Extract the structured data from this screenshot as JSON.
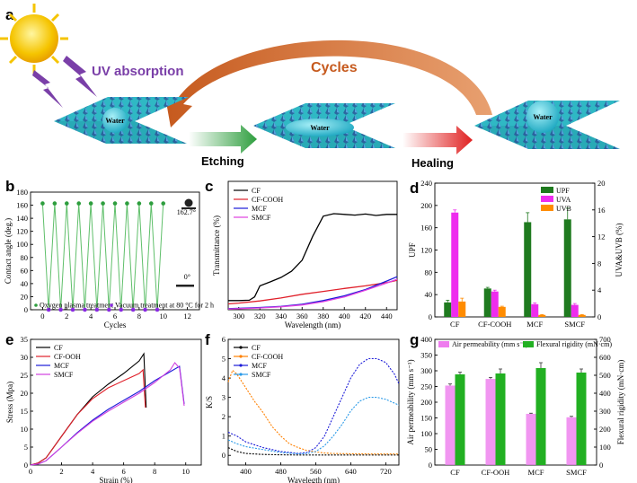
{
  "panel_a": {
    "label": "a",
    "uv_text": "UV absorption",
    "cycles_text": "Cycles",
    "etching_text": "Etching",
    "healing_text": "Healing",
    "water_label": "Water",
    "colors": {
      "uv": "#7a3fa8",
      "cycles": "#c65a1e",
      "sun": "#f5c400",
      "fabric": "#34c0c8",
      "crystal": "#2a5a9a"
    }
  },
  "chart_data": [
    {
      "panel": "b",
      "type": "scatter",
      "xlabel": "Cycles",
      "ylabel": "Contact angle (deg.)",
      "xlim": [
        -1,
        13
      ],
      "ylim": [
        0,
        180
      ],
      "xticks": [
        0,
        2,
        4,
        6,
        8,
        10,
        12
      ],
      "yticks": [
        0,
        20,
        40,
        60,
        80,
        100,
        120,
        140,
        160,
        180
      ],
      "series": [
        {
          "name": "Oxygen plasma treatment",
          "x": [
            0,
            1,
            2,
            3,
            4,
            5,
            6,
            7,
            8,
            9,
            10
          ],
          "values": [
            162.7,
            162.7,
            162.7,
            162.7,
            162.7,
            162.7,
            162.7,
            162.7,
            162.7,
            162.7,
            162.7
          ],
          "color": "#2e9e3e"
        },
        {
          "name": "Vacuum treatment at 80 °C for 2 h",
          "x": [
            0.5,
            1.5,
            2.5,
            3.5,
            4.5,
            5.5,
            6.5,
            7.5,
            8.5,
            9.5
          ],
          "values": [
            0,
            0,
            0,
            0,
            0,
            0,
            0,
            0,
            0,
            0
          ],
          "color": "#8a2be2"
        }
      ],
      "annotations": [
        "162.7°",
        "0°"
      ]
    },
    {
      "panel": "c",
      "type": "line",
      "xlabel": "Wavelength (nm)",
      "ylabel": "Transmittance (%)",
      "xlim": [
        290,
        450
      ],
      "ylim": [
        0,
        35
      ],
      "xticks": [
        300,
        320,
        340,
        360,
        380,
        400,
        420,
        440
      ],
      "series": [
        {
          "name": "CF",
          "color": "#000000",
          "x": [
            290,
            300,
            310,
            315,
            320,
            330,
            340,
            350,
            360,
            370,
            380,
            390,
            400,
            410,
            420,
            430,
            440,
            450
          ],
          "values": [
            2.5,
            2.5,
            2.6,
            3.5,
            6.5,
            7.6,
            8.8,
            10.5,
            13.5,
            20,
            25.5,
            26.2,
            26,
            25.8,
            26.1,
            25.7,
            26,
            26
          ]
        },
        {
          "name": "CF-COOH",
          "color": "#e0202a",
          "x": [
            290,
            300,
            320,
            340,
            360,
            380,
            400,
            420,
            440,
            450
          ],
          "values": [
            1.6,
            1.8,
            2.4,
            3.2,
            4.2,
            5,
            5.8,
            6.5,
            7.4,
            8
          ]
        },
        {
          "name": "MCF",
          "color": "#1c1cd8",
          "x": [
            290,
            300,
            320,
            340,
            360,
            380,
            400,
            420,
            440,
            450
          ],
          "values": [
            0.3,
            0.4,
            0.6,
            0.9,
            1.5,
            2.5,
            3.8,
            5.5,
            7.8,
            9
          ]
        },
        {
          "name": "SMCF",
          "color": "#e040e0",
          "x": [
            290,
            300,
            320,
            340,
            360,
            380,
            400,
            420,
            440,
            450
          ],
          "values": [
            0.2,
            0.3,
            0.5,
            0.8,
            1.3,
            2.2,
            3.5,
            5.3,
            7.3,
            8.3
          ]
        }
      ]
    },
    {
      "panel": "d",
      "type": "bar",
      "categories": [
        "CF",
        "CF-COOH",
        "MCF",
        "SMCF"
      ],
      "ylabel": "UPF",
      "ylabel_right": "UVA&UVB (%)",
      "ylim": [
        0,
        240
      ],
      "ylim_right": [
        0,
        20
      ],
      "yticks": [
        0,
        40,
        80,
        120,
        160,
        200,
        240
      ],
      "yticks_right": [
        0,
        4,
        8,
        12,
        16,
        20
      ],
      "series": [
        {
          "name": "UPF",
          "axis": "left",
          "color": "#1f7a1f",
          "values": [
            26,
            51,
            170,
            175
          ],
          "errors": [
            4,
            2,
            17,
            20
          ]
        },
        {
          "name": "UVA",
          "axis": "right",
          "color": "#ee2cee",
          "values": [
            15.6,
            3.8,
            1.9,
            1.8
          ],
          "errors": [
            0.4,
            0.2,
            0.2,
            0.2
          ]
        },
        {
          "name": "UVB",
          "axis": "right",
          "color": "#ff8c00",
          "values": [
            2.3,
            1.5,
            0.3,
            0.3
          ],
          "errors": [
            0.5,
            0.1,
            0.05,
            0.05
          ]
        }
      ]
    },
    {
      "panel": "e",
      "type": "line",
      "xlabel": "Strain (%)",
      "ylabel": "Stress (Mpa)",
      "xlim": [
        0,
        11
      ],
      "ylim": [
        0,
        35
      ],
      "xticks": [
        0,
        2,
        4,
        6,
        8,
        10
      ],
      "yticks": [
        0,
        5,
        10,
        15,
        20,
        25,
        30,
        35
      ],
      "series": [
        {
          "name": "CF",
          "color": "#000000",
          "x": [
            0,
            0.5,
            1,
            2,
            3,
            4,
            5,
            6,
            7,
            7.3,
            7.45
          ],
          "values": [
            0,
            0.6,
            2,
            8,
            14,
            19,
            22.5,
            25.5,
            29,
            31,
            16
          ]
        },
        {
          "name": "CF-OOH",
          "color": "#e0202a",
          "x": [
            0,
            0.5,
            1,
            2,
            3,
            4,
            5,
            6,
            7,
            7.25,
            7.4
          ],
          "values": [
            0,
            0.6,
            2,
            8,
            14,
            18.5,
            21.5,
            23.5,
            25.5,
            26.5,
            16
          ]
        },
        {
          "name": "MCF",
          "color": "#1c1cd8",
          "x": [
            0,
            0.5,
            1,
            2,
            3,
            4,
            5,
            6,
            7,
            8,
            9,
            9.6,
            9.9
          ],
          "values": [
            0,
            0.3,
            1.2,
            5,
            9,
            12.5,
            15.5,
            18,
            20.5,
            23.5,
            26,
            27.5,
            17
          ]
        },
        {
          "name": "SMCF",
          "color": "#d040e0",
          "x": [
            0,
            0.5,
            1,
            2,
            3,
            4,
            5,
            6,
            7,
            8,
            9,
            9.3,
            9.6,
            9.9
          ],
          "values": [
            0,
            0.3,
            1.2,
            5,
            8.8,
            12.2,
            15,
            17.5,
            20,
            23,
            26.5,
            28.5,
            27,
            16.5
          ]
        }
      ]
    },
    {
      "panel": "f",
      "type": "line",
      "xlabel": "Wavelegth (nm)",
      "ylabel": "K/S",
      "xlim": [
        360,
        750
      ],
      "ylim": [
        -0.5,
        6
      ],
      "xticks": [
        400,
        480,
        560,
        640,
        720
      ],
      "yticks": [
        0,
        1,
        2,
        3,
        4,
        5,
        6
      ],
      "series": [
        {
          "name": "CF",
          "color": "#000000",
          "x": [
            360,
            380,
            400,
            440,
            480,
            520,
            560,
            600,
            640,
            680,
            720,
            750
          ],
          "values": [
            0.4,
            0.2,
            0.1,
            0.05,
            0.03,
            0.02,
            0.02,
            0.02,
            0.02,
            0.02,
            0.02,
            0.02
          ]
        },
        {
          "name": "CF-COOH",
          "color": "#ff8000",
          "x": [
            360,
            370,
            380,
            400,
            420,
            440,
            460,
            480,
            500,
            520,
            540,
            560,
            580,
            600,
            650,
            700,
            750
          ],
          "values": [
            3.8,
            4.4,
            4.2,
            3.5,
            2.8,
            2.2,
            1.5,
            1,
            0.6,
            0.4,
            0.25,
            0.18,
            0.12,
            0.1,
            0.08,
            0.07,
            0.07
          ]
        },
        {
          "name": "MCF",
          "color": "#1c1cd8",
          "x": [
            360,
            380,
            400,
            440,
            480,
            520,
            540,
            560,
            580,
            600,
            620,
            640,
            660,
            680,
            700,
            720,
            740,
            750
          ],
          "values": [
            1.2,
            1,
            0.7,
            0.4,
            0.2,
            0.1,
            0.15,
            0.4,
            1,
            2,
            3,
            4,
            4.7,
            5,
            5,
            4.8,
            4.2,
            3.7
          ]
        },
        {
          "name": "SMCF",
          "color": "#2a9ae8",
          "x": [
            360,
            380,
            400,
            440,
            480,
            520,
            540,
            560,
            580,
            600,
            620,
            640,
            660,
            680,
            700,
            720,
            740,
            750
          ],
          "values": [
            0.8,
            0.6,
            0.45,
            0.3,
            0.15,
            0.08,
            0.1,
            0.2,
            0.5,
            1,
            1.6,
            2.3,
            2.8,
            3,
            3,
            2.9,
            2.7,
            2.6
          ]
        }
      ]
    },
    {
      "panel": "g",
      "type": "bar",
      "categories": [
        "CF",
        "CF-OOH",
        "MCF",
        "SMCF"
      ],
      "ylabel": "Air permeability (mm s⁻¹)",
      "ylabel_right": "Flexural rigidity (mN·cm)",
      "ylim": [
        0,
        400
      ],
      "ylim_right": [
        0,
        700
      ],
      "yticks": [
        0,
        50,
        100,
        150,
        200,
        250,
        300,
        350,
        400
      ],
      "yticks_right": [
        0,
        100,
        200,
        300,
        400,
        500,
        600,
        700
      ],
      "series": [
        {
          "name": "Air permeability (mm s⁻¹)",
          "axis": "left",
          "color": "#ee7cee",
          "values": [
            253,
            274,
            163,
            152
          ],
          "errors": [
            5,
            5,
            2,
            3
          ]
        },
        {
          "name": "Flexural rigidity (mN·cm)",
          "axis": "right",
          "color": "#22b022",
          "values": [
            505,
            510,
            540,
            515
          ],
          "errors": [
            12,
            25,
            30,
            20
          ]
        }
      ]
    }
  ]
}
